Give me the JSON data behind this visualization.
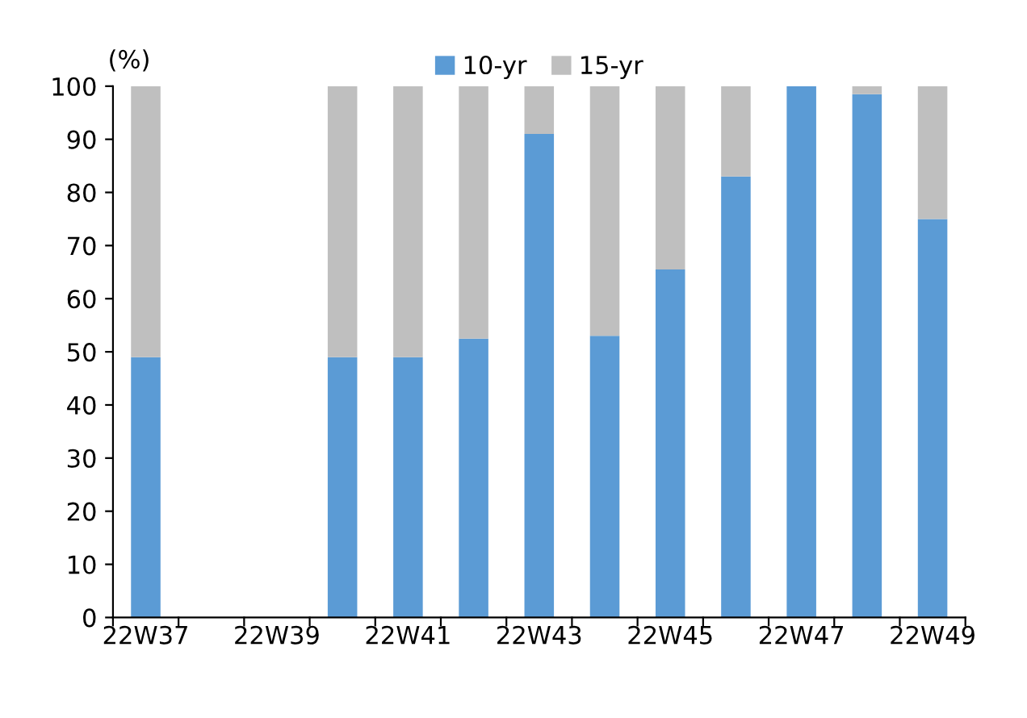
{
  "chart_data": {
    "type": "bar",
    "stacked": true,
    "categories": [
      "22W37",
      null,
      "22W39",
      null,
      "22W41",
      null,
      "22W43",
      null,
      "22W45",
      null,
      "22W47",
      null,
      "22W49"
    ],
    "series": [
      {
        "name": "10-yr",
        "color": "#5b9bd5",
        "values": [
          49,
          null,
          null,
          49,
          49,
          52.5,
          91,
          53,
          65.5,
          83,
          100,
          98.5,
          75
        ]
      },
      {
        "name": "15-yr",
        "color": "#bfbfbf",
        "values": [
          51,
          null,
          null,
          51,
          51,
          47.5,
          9,
          47,
          34.5,
          17,
          0,
          1.5,
          25
        ]
      }
    ],
    "ylim": [
      0,
      100
    ],
    "yticks": [
      0,
      10,
      20,
      30,
      40,
      50,
      60,
      70,
      80,
      90,
      100
    ],
    "annotations": [
      "(%)"
    ],
    "legend": "top",
    "grid": false
  }
}
